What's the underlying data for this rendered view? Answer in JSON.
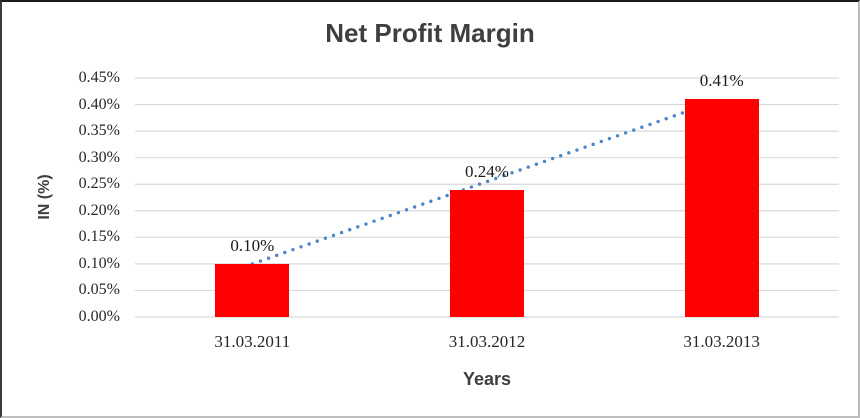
{
  "chart_data": {
    "type": "bar",
    "title": "Net Profit Margin",
    "xlabel": "Years",
    "ylabel": "IN (%)",
    "categories": [
      "31.03.2011",
      "31.03.2012",
      "31.03.2013"
    ],
    "values": [
      0.1,
      0.24,
      0.41
    ],
    "data_labels": [
      "0.10%",
      "0.24%",
      "0.41%"
    ],
    "yticks": [
      {
        "label": "0.00%",
        "value": 0.0
      },
      {
        "label": "0.05%",
        "value": 0.05
      },
      {
        "label": "0.10%",
        "value": 0.1
      },
      {
        "label": "0.15%",
        "value": 0.15
      },
      {
        "label": "0.20%",
        "value": 0.2
      },
      {
        "label": "0.25%",
        "value": 0.25
      },
      {
        "label": "0.30%",
        "value": 0.3
      },
      {
        "label": "0.35%",
        "value": 0.35
      },
      {
        "label": "0.40%",
        "value": 0.4
      },
      {
        "label": "0.45%",
        "value": 0.45
      }
    ],
    "ylim": [
      0,
      0.45
    ],
    "grid": true,
    "legend": false,
    "colors": {
      "bar": "#ff0000",
      "gridline": "#d9d9d9",
      "tick_text": "#262626",
      "title_text": "#3f3f3f",
      "trendline": "#4a86c8"
    },
    "trendline": {
      "style": "dotted",
      "color": "#4a86c8",
      "from_index": 0,
      "to_index": 2
    }
  }
}
